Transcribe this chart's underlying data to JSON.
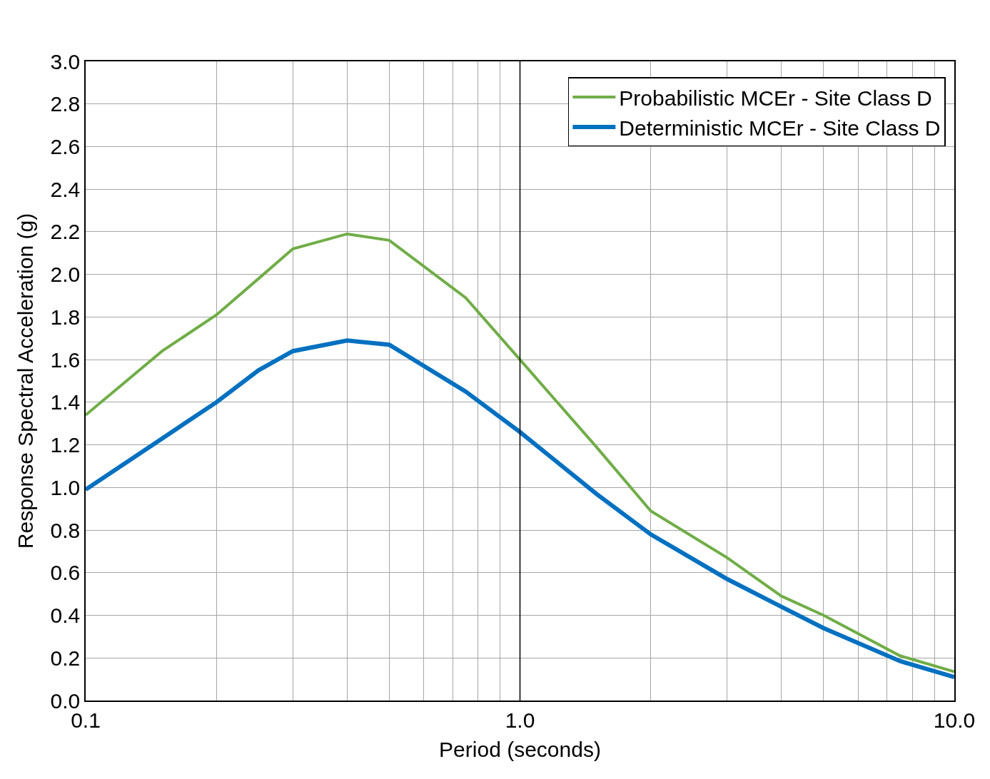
{
  "chart_data": {
    "type": "line",
    "xlabel": "Period (seconds)",
    "ylabel": "Response Spectral Acceleration (g)",
    "log": "x",
    "xlim": [
      0.1,
      10
    ],
    "ylim": [
      0,
      3.0
    ],
    "xticks": [
      {
        "value": 0.1,
        "label": "0.1"
      },
      {
        "value": 0.2,
        "label": null
      },
      {
        "value": 0.3,
        "label": null
      },
      {
        "value": 0.4,
        "label": null
      },
      {
        "value": 0.5,
        "label": null
      },
      {
        "value": 0.6,
        "label": null
      },
      {
        "value": 0.7,
        "label": null
      },
      {
        "value": 0.8,
        "label": null
      },
      {
        "value": 0.9,
        "label": null
      },
      {
        "value": 1,
        "label": "1.0"
      },
      {
        "value": 2,
        "label": null
      },
      {
        "value": 3,
        "label": null
      },
      {
        "value": 4,
        "label": null
      },
      {
        "value": 5,
        "label": null
      },
      {
        "value": 6,
        "label": null
      },
      {
        "value": 7,
        "label": null
      },
      {
        "value": 8,
        "label": null
      },
      {
        "value": 9,
        "label": null
      },
      {
        "value": 10,
        "label": "10.0"
      }
    ],
    "yticks": [
      {
        "value": 0,
        "label": "0.0"
      },
      {
        "value": 0.2,
        "label": "0.2"
      },
      {
        "value": 0.4,
        "label": "0.4"
      },
      {
        "value": 0.6,
        "label": "0.6"
      },
      {
        "value": 0.8,
        "label": "0.8"
      },
      {
        "value": 1.0,
        "label": "1.0"
      },
      {
        "value": 1.2,
        "label": "1.2"
      },
      {
        "value": 1.4,
        "label": "1.4"
      },
      {
        "value": 1.6,
        "label": "1.6"
      },
      {
        "value": 1.8,
        "label": "1.8"
      },
      {
        "value": 2.0,
        "label": "2.0"
      },
      {
        "value": 2.2,
        "label": "2.2"
      },
      {
        "value": 2.4,
        "label": "2.4"
      },
      {
        "value": 2.6,
        "label": "2.6"
      },
      {
        "value": 2.8,
        "label": "2.8"
      },
      {
        "value": 3.0,
        "label": "3.0"
      }
    ],
    "grid": true,
    "legend": "top right",
    "marker": "none",
    "line_style": "solid",
    "ref_lines": [
      {
        "axis": "x",
        "value": 1,
        "color": "#000000"
      }
    ],
    "x": [
      0.1,
      0.15,
      0.2,
      0.25,
      0.3,
      0.4,
      0.5,
      0.75,
      1.0,
      1.5,
      2,
      3,
      4,
      5,
      7.5,
      10
    ],
    "series": [
      {
        "name": "Probabilistic MCEr - Site Class D",
        "color": "#70ad47",
        "values": [
          1.34,
          1.64,
          1.81,
          1.98,
          2.12,
          2.19,
          2.16,
          1.89,
          1.6,
          1.19,
          0.89,
          0.67,
          0.49,
          0.4,
          0.21,
          0.135
        ]
      },
      {
        "name": "Deterministic MCEr - Site Class D",
        "color": "#0070c0",
        "values": [
          0.99,
          1.23,
          1.4,
          1.55,
          1.64,
          1.69,
          1.67,
          1.45,
          1.26,
          0.97,
          0.78,
          0.57,
          0.44,
          0.34,
          0.185,
          0.11
        ]
      }
    ]
  }
}
